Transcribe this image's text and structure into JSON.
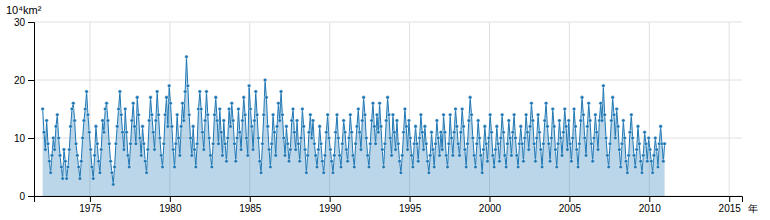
{
  "chart_data": {
    "type": "area",
    "y_label": "10⁴km²",
    "x_label": "年",
    "xlim": [
      1971.5,
      2015.8
    ],
    "ylim": [
      0,
      30
    ],
    "xticks": [
      1975,
      1980,
      1985,
      1990,
      1995,
      2000,
      2005,
      2010,
      2015
    ],
    "yticks": [
      0,
      10,
      20,
      30
    ],
    "grid": true,
    "marker": "circle",
    "x": [
      1972.041667,
      1972.125,
      1972.208333,
      1972.291667,
      1972.375,
      1972.458333,
      1972.541667,
      1972.625,
      1972.708333,
      1972.791667,
      1972.875,
      1972.958333,
      1973.041667,
      1973.125,
      1973.208333,
      1973.291667,
      1973.375,
      1973.458333,
      1973.541667,
      1973.625,
      1973.708333,
      1973.791667,
      1973.875,
      1973.958333,
      1974.041667,
      1974.125,
      1974.208333,
      1974.291667,
      1974.375,
      1974.458333,
      1974.541667,
      1974.625,
      1974.708333,
      1974.791667,
      1974.875,
      1974.958333,
      1975.041667,
      1975.125,
      1975.208333,
      1975.291667,
      1975.375,
      1975.458333,
      1975.541667,
      1975.625,
      1975.708333,
      1975.791667,
      1975.875,
      1975.958333,
      1976.041667,
      1976.125,
      1976.208333,
      1976.291667,
      1976.375,
      1976.458333,
      1976.541667,
      1976.625,
      1976.708333,
      1976.791667,
      1976.875,
      1976.958333,
      1977.041667,
      1977.125,
      1977.208333,
      1977.291667,
      1977.375,
      1977.458333,
      1977.541667,
      1977.625,
      1977.708333,
      1977.791667,
      1977.875,
      1977.958333,
      1978.041667,
      1978.125,
      1978.208333,
      1978.291667,
      1978.375,
      1978.458333,
      1978.541667,
      1978.625,
      1978.708333,
      1978.791667,
      1978.875,
      1978.958333,
      1979.041667,
      1979.125,
      1979.208333,
      1979.291667,
      1979.375,
      1979.458333,
      1979.541667,
      1979.625,
      1979.708333,
      1979.791667,
      1979.875,
      1979.958333,
      1980.041667,
      1980.125,
      1980.208333,
      1980.291667,
      1980.375,
      1980.458333,
      1980.541667,
      1980.625,
      1980.708333,
      1980.791667,
      1980.875,
      1980.958333,
      1981.041667,
      1981.125,
      1981.208333,
      1981.291667,
      1981.375,
      1981.458333,
      1981.541667,
      1981.625,
      1981.708333,
      1981.791667,
      1981.875,
      1981.958333,
      1982.041667,
      1982.125,
      1982.208333,
      1982.291667,
      1982.375,
      1982.458333,
      1982.541667,
      1982.625,
      1982.708333,
      1982.791667,
      1982.875,
      1982.958333,
      1983.041667,
      1983.125,
      1983.208333,
      1983.291667,
      1983.375,
      1983.458333,
      1983.541667,
      1983.625,
      1983.708333,
      1983.791667,
      1983.875,
      1983.958333,
      1984.041667,
      1984.125,
      1984.208333,
      1984.291667,
      1984.375,
      1984.458333,
      1984.541667,
      1984.625,
      1984.708333,
      1984.791667,
      1984.875,
      1984.958333,
      1985.041667,
      1985.125,
      1985.208333,
      1985.291667,
      1985.375,
      1985.458333,
      1985.541667,
      1985.625,
      1985.708333,
      1985.791667,
      1985.875,
      1985.958333,
      1986.041667,
      1986.125,
      1986.208333,
      1986.291667,
      1986.375,
      1986.458333,
      1986.541667,
      1986.625,
      1986.708333,
      1986.791667,
      1986.875,
      1986.958333,
      1987.041667,
      1987.125,
      1987.208333,
      1987.291667,
      1987.375,
      1987.458333,
      1987.541667,
      1987.625,
      1987.708333,
      1987.791667,
      1987.875,
      1987.958333,
      1988.041667,
      1988.125,
      1988.208333,
      1988.291667,
      1988.375,
      1988.458333,
      1988.541667,
      1988.625,
      1988.708333,
      1988.791667,
      1988.875,
      1988.958333,
      1989.041667,
      1989.125,
      1989.208333,
      1989.291667,
      1989.375,
      1989.458333,
      1989.541667,
      1989.625,
      1989.708333,
      1989.791667,
      1989.875,
      1989.958333,
      1990.041667,
      1990.125,
      1990.208333,
      1990.291667,
      1990.375,
      1990.458333,
      1990.541667,
      1990.625,
      1990.708333,
      1990.791667,
      1990.875,
      1990.958333,
      1991.041667,
      1991.125,
      1991.208333,
      1991.291667,
      1991.375,
      1991.458333,
      1991.541667,
      1991.625,
      1991.708333,
      1991.791667,
      1991.875,
      1991.958333,
      1992.041667,
      1992.125,
      1992.208333,
      1992.291667,
      1992.375,
      1992.458333,
      1992.541667,
      1992.625,
      1992.708333,
      1992.791667,
      1992.875,
      1992.958333,
      1993.041667,
      1993.125,
      1993.208333,
      1993.291667,
      1993.375,
      1993.458333,
      1993.541667,
      1993.625,
      1993.708333,
      1993.791667,
      1993.875,
      1993.958333,
      1994.041667,
      1994.125,
      1994.208333,
      1994.291667,
      1994.375,
      1994.458333,
      1994.541667,
      1994.625,
      1994.708333,
      1994.791667,
      1994.875,
      1994.958333,
      1995.041667,
      1995.125,
      1995.208333,
      1995.291667,
      1995.375,
      1995.458333,
      1995.541667,
      1995.625,
      1995.708333,
      1995.791667,
      1995.875,
      1995.958333,
      1996.041667,
      1996.125,
      1996.208333,
      1996.291667,
      1996.375,
      1996.458333,
      1996.541667,
      1996.625,
      1996.708333,
      1996.791667,
      1996.875,
      1996.958333,
      1997.041667,
      1997.125,
      1997.208333,
      1997.291667,
      1997.375,
      1997.458333,
      1997.541667,
      1997.625,
      1997.708333,
      1997.791667,
      1997.875,
      1997.958333,
      1998.041667,
      1998.125,
      1998.208333,
      1998.291667,
      1998.375,
      1998.458333,
      1998.541667,
      1998.625,
      1998.708333,
      1998.791667,
      1998.875,
      1998.958333,
      1999.041667,
      1999.125,
      1999.208333,
      1999.291667,
      1999.375,
      1999.458333,
      1999.541667,
      1999.625,
      1999.708333,
      1999.791667,
      1999.875,
      1999.958333,
      2000.041667,
      2000.125,
      2000.208333,
      2000.291667,
      2000.375,
      2000.458333,
      2000.541667,
      2000.625,
      2000.708333,
      2000.791667,
      2000.875,
      2000.958333,
      2001.041667,
      2001.125,
      2001.208333,
      2001.291667,
      2001.375,
      2001.458333,
      2001.541667,
      2001.625,
      2001.708333,
      2001.791667,
      2001.875,
      2001.958333,
      2002.041667,
      2002.125,
      2002.208333,
      2002.291667,
      2002.375,
      2002.458333,
      2002.541667,
      2002.625,
      2002.708333,
      2002.791667,
      2002.875,
      2002.958333,
      2003.041667,
      2003.125,
      2003.208333,
      2003.291667,
      2003.375,
      2003.458333,
      2003.541667,
      2003.625,
      2003.708333,
      2003.791667,
      2003.875,
      2003.958333,
      2004.041667,
      2004.125,
      2004.208333,
      2004.291667,
      2004.375,
      2004.458333,
      2004.541667,
      2004.625,
      2004.708333,
      2004.791667,
      2004.875,
      2004.958333,
      2005.041667,
      2005.125,
      2005.208333,
      2005.291667,
      2005.375,
      2005.458333,
      2005.541667,
      2005.625,
      2005.708333,
      2005.791667,
      2005.875,
      2005.958333,
      2006.041667,
      2006.125,
      2006.208333,
      2006.291667,
      2006.375,
      2006.458333,
      2006.541667,
      2006.625,
      2006.708333,
      2006.791667,
      2006.875,
      2006.958333,
      2007.041667,
      2007.125,
      2007.208333,
      2007.291667,
      2007.375,
      2007.458333,
      2007.541667,
      2007.625,
      2007.708333,
      2007.791667,
      2007.875,
      2007.958333,
      2008.041667,
      2008.125,
      2008.208333,
      2008.291667,
      2008.375,
      2008.458333,
      2008.541667,
      2008.625,
      2008.708333,
      2008.791667,
      2008.875,
      2008.958333,
      2009.041667,
      2009.125,
      2009.208333,
      2009.291667,
      2009.375,
      2009.458333,
      2009.541667,
      2009.625,
      2009.708333,
      2009.791667,
      2009.875,
      2009.958333,
      2010.041667,
      2010.125,
      2010.208333,
      2010.291667,
      2010.375,
      2010.458333,
      2010.541667,
      2010.625,
      2010.708333,
      2010.791667,
      2010.875,
      2010.958333
    ],
    "values": [
      15,
      11,
      8,
      13,
      9,
      6,
      4,
      7,
      10,
      8,
      12,
      14,
      10,
      7,
      5,
      3,
      8,
      6,
      3,
      5,
      8,
      12,
      15,
      16,
      13,
      9,
      7,
      5,
      3,
      6,
      10,
      13,
      15,
      18,
      14,
      11,
      8,
      5,
      3,
      7,
      12,
      9,
      6,
      4,
      8,
      13,
      11,
      15,
      16,
      13,
      9,
      6,
      4,
      2,
      5,
      9,
      12,
      15,
      18,
      14,
      11,
      8,
      15,
      11,
      7,
      5,
      9,
      13,
      16,
      12,
      9,
      17,
      14,
      10,
      7,
      12,
      9,
      6,
      4,
      8,
      13,
      17,
      14,
      11,
      8,
      13,
      18,
      14,
      10,
      7,
      5,
      9,
      14,
      17,
      12,
      19,
      16,
      12,
      8,
      5,
      9,
      14,
      10,
      7,
      12,
      16,
      13,
      18,
      24,
      19,
      14,
      10,
      7,
      12,
      8,
      5,
      9,
      15,
      18,
      15,
      11,
      8,
      13,
      18,
      14,
      10,
      7,
      5,
      9,
      14,
      17,
      13,
      9,
      15,
      11,
      7,
      13,
      9,
      6,
      10,
      15,
      12,
      16,
      13,
      9,
      6,
      10,
      15,
      11,
      8,
      13,
      17,
      14,
      10,
      7,
      19,
      15,
      12,
      8,
      13,
      18,
      14,
      10,
      6,
      4,
      9,
      14,
      20,
      17,
      12,
      8,
      5,
      9,
      14,
      11,
      7,
      12,
      16,
      13,
      18,
      14,
      10,
      7,
      12,
      9,
      6,
      8,
      13,
      15,
      11,
      8,
      13,
      9,
      6,
      10,
      15,
      12,
      8,
      4,
      7,
      11,
      14,
      10,
      13,
      9,
      7,
      5,
      8,
      12,
      9,
      6,
      4,
      7,
      11,
      14,
      10,
      8,
      6,
      4,
      7,
      11,
      14,
      10,
      7,
      5,
      9,
      13,
      11,
      8,
      6,
      10,
      14,
      11,
      7,
      5,
      9,
      12,
      15,
      11,
      8,
      13,
      17,
      14,
      10,
      7,
      5,
      9,
      13,
      16,
      12,
      9,
      14,
      11,
      16,
      12,
      8,
      5,
      9,
      13,
      17,
      14,
      10,
      7,
      14,
      11,
      8,
      13,
      9,
      6,
      4,
      7,
      11,
      15,
      12,
      8,
      13,
      10,
      7,
      5,
      9,
      12,
      9,
      6,
      10,
      14,
      11,
      8,
      12,
      9,
      6,
      4,
      7,
      11,
      8,
      5,
      9,
      13,
      10,
      7,
      11,
      8,
      14,
      11,
      7,
      5,
      9,
      14,
      10,
      7,
      11,
      15,
      12,
      9,
      7,
      11,
      15,
      12,
      8,
      5,
      9,
      13,
      17,
      14,
      10,
      7,
      5,
      9,
      13,
      10,
      7,
      4,
      8,
      12,
      9,
      6,
      10,
      14,
      11,
      7,
      5,
      8,
      12,
      9,
      6,
      10,
      14,
      11,
      7,
      5,
      9,
      13,
      10,
      7,
      11,
      14,
      10,
      7,
      5,
      9,
      12,
      9,
      6,
      10,
      14,
      11,
      8,
      12,
      16,
      13,
      9,
      6,
      10,
      14,
      11,
      8,
      5,
      9,
      13,
      16,
      12,
      9,
      6,
      10,
      15,
      12,
      8,
      5,
      9,
      13,
      10,
      7,
      11,
      15,
      12,
      8,
      13,
      9,
      6,
      10,
      15,
      12,
      8,
      5,
      9,
      13,
      17,
      14,
      10,
      7,
      12,
      16,
      13,
      9,
      6,
      10,
      14,
      11,
      8,
      13,
      16,
      13,
      19,
      14,
      10,
      7,
      5,
      9,
      13,
      17,
      14,
      10,
      15,
      12,
      8,
      5,
      9,
      13,
      10,
      6,
      4,
      7,
      11,
      14,
      10,
      7,
      5,
      8,
      12,
      9,
      6,
      4,
      7,
      11,
      9,
      6,
      10,
      8,
      6,
      4,
      7,
      10,
      8,
      5,
      9,
      12,
      9,
      6,
      9
    ]
  }
}
